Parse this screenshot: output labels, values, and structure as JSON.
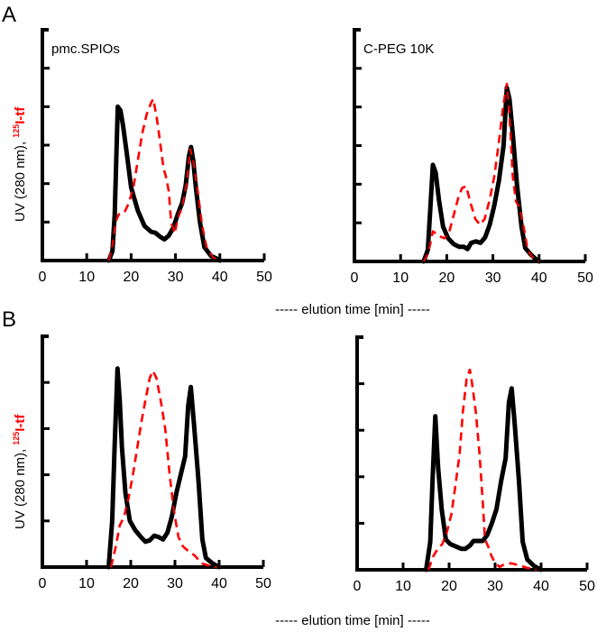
{
  "figure": {
    "panel_labels": [
      "A",
      "B"
    ],
    "xlabel": "----- elution time [min] -----",
    "ylabel_uv": "UV (280 nm),",
    "ylabel_tracer_superscript": "125",
    "ylabel_tracer": "I-tf",
    "colors": {
      "uv": "#000000",
      "tracer": "#ff0000"
    }
  },
  "chart_data": [
    {
      "type": "line",
      "panel": "A",
      "position": "left",
      "annotation": "pmc.SPIOs",
      "xlabel": "----- elution time [min] -----",
      "ylabel": "UV (280 nm), 125I-tf",
      "xlim": [
        0,
        50
      ],
      "xticks": [
        0,
        10,
        20,
        30,
        40,
        50
      ],
      "ylim": [
        0,
        6
      ],
      "yticks": [
        1,
        2,
        3,
        4,
        5,
        6
      ],
      "series": [
        {
          "name": "UV (280 nm)",
          "style": "solid-black",
          "x": [
            15,
            15.8,
            16.3,
            17,
            17.6,
            18.2,
            19,
            20,
            21.5,
            23,
            24.5,
            25.5,
            26.5,
            27.5,
            28.5,
            29.5,
            30.5,
            31.5,
            32.3,
            33,
            33.5,
            34,
            34.6,
            35.5,
            36.5,
            38,
            39.5,
            40
          ],
          "y": [
            0,
            0.25,
            1.2,
            4.0,
            3.9,
            3.5,
            2.8,
            1.9,
            1.3,
            0.9,
            0.75,
            0.72,
            0.62,
            0.55,
            0.65,
            0.85,
            1.2,
            1.5,
            1.95,
            2.7,
            2.95,
            2.6,
            1.9,
            1.0,
            0.35,
            0.12,
            0.04,
            0
          ]
        },
        {
          "name": "125I-tf",
          "style": "dashed-red",
          "x": [
            15,
            15.8,
            16.5,
            17.2,
            18.5,
            19.5,
            20.5,
            21.5,
            22.5,
            23.5,
            24.5,
            25,
            25.8,
            26.5,
            27.3,
            27.8,
            28.5,
            29,
            29.8,
            30.5,
            31.5,
            32.5,
            33.3,
            34,
            35,
            36,
            37,
            38.5,
            40
          ],
          "y": [
            0,
            0.4,
            1.0,
            1.2,
            1.25,
            1.5,
            1.9,
            2.6,
            3.3,
            3.8,
            4.1,
            4.2,
            3.7,
            3.1,
            2.4,
            2.2,
            1.8,
            1.0,
            0.7,
            1.1,
            1.4,
            2.0,
            2.9,
            2.6,
            1.8,
            0.9,
            0.35,
            0.08,
            0
          ]
        }
      ]
    },
    {
      "type": "line",
      "panel": "A",
      "position": "right",
      "annotation": "C-PEG  10K",
      "xlabel": "----- elution time [min] -----",
      "ylabel": "",
      "xlim": [
        0,
        50
      ],
      "xticks": [
        0,
        10,
        20,
        30,
        40,
        50
      ],
      "ylim": [
        0,
        6
      ],
      "yticks": [
        1,
        2,
        3,
        4,
        5,
        6
      ],
      "series": [
        {
          "name": "UV (280 nm)",
          "style": "solid-black",
          "x": [
            15,
            15.9,
            16.4,
            17,
            17.6,
            18.3,
            19.2,
            20.3,
            21.5,
            22.7,
            23.7,
            24.5,
            25.3,
            26.3,
            27.3,
            28.3,
            29.3,
            30.3,
            31.3,
            32.3,
            33,
            33.6,
            34.3,
            35.2,
            36.2,
            37,
            38.2,
            39.3,
            40
          ],
          "y": [
            0,
            0.3,
            1.3,
            2.5,
            2.3,
            1.6,
            0.9,
            0.6,
            0.45,
            0.38,
            0.38,
            0.32,
            0.48,
            0.52,
            0.48,
            0.62,
            0.95,
            1.45,
            2.1,
            3.0,
            4.5,
            4.2,
            3.3,
            2.0,
            0.9,
            0.35,
            0.18,
            0.06,
            0
          ]
        },
        {
          "name": "125I-tf",
          "style": "dashed-red",
          "x": [
            15,
            16,
            17,
            18.5,
            19.5,
            20.5,
            21.5,
            22.5,
            23.3,
            24.2,
            25.2,
            26.2,
            27.2,
            28.2,
            29.3,
            30.3,
            31.2,
            32.2,
            33,
            33.6,
            34.3,
            35,
            35.8,
            36.8,
            37.5,
            38.5,
            40
          ],
          "y": [
            0,
            0.22,
            0.78,
            0.65,
            0.6,
            0.75,
            1.2,
            1.65,
            1.9,
            1.95,
            1.5,
            1.1,
            0.95,
            1.1,
            1.6,
            2.2,
            3.0,
            4.0,
            4.6,
            3.8,
            2.2,
            1.55,
            1.4,
            0.8,
            0.3,
            0.12,
            0
          ]
        }
      ]
    },
    {
      "type": "line",
      "panel": "B",
      "position": "left",
      "annotation": "",
      "xlabel": "----- elution time [min] -----",
      "ylabel": "UV (280 nm), 125I-tf",
      "xlim": [
        0,
        50
      ],
      "xticks": [
        0,
        10,
        20,
        30,
        40,
        50
      ],
      "ylim": [
        0,
        5
      ],
      "yticks": [
        1,
        2,
        3,
        4,
        5
      ],
      "series": [
        {
          "name": "UV (280 nm)",
          "style": "solid-black",
          "x": [
            15,
            15.8,
            16.3,
            17,
            17.5,
            18,
            18.8,
            19.8,
            21,
            22.3,
            23.3,
            24.3,
            25.3,
            26.3,
            27.3,
            28.3,
            29.3,
            30.3,
            31.3,
            32.3,
            33,
            33.6,
            34.3,
            35.3,
            36.2,
            37,
            38.5,
            40
          ],
          "y": [
            0,
            1.0,
            2.5,
            4.3,
            3.6,
            2.6,
            1.6,
            1.0,
            0.8,
            0.65,
            0.55,
            0.58,
            0.68,
            0.65,
            0.6,
            0.75,
            1.1,
            1.6,
            2.0,
            2.4,
            3.5,
            3.9,
            3.1,
            1.9,
            0.6,
            0.2,
            0.08,
            0
          ]
        },
        {
          "name": "125I-tf",
          "style": "dashed-red",
          "x": [
            15.5,
            16.5,
            17.5,
            18.5,
            19.5,
            20.5,
            21.5,
            22.5,
            23.5,
            24.3,
            25,
            25.8,
            26.8,
            27.8,
            28.8,
            29.8,
            30.8,
            31.8,
            33,
            34.5,
            36,
            37.5,
            39.5
          ],
          "y": [
            0,
            0.4,
            0.9,
            1.1,
            1.5,
            2.0,
            2.6,
            3.2,
            3.7,
            4.1,
            4.25,
            4.1,
            3.6,
            3.0,
            2.0,
            1.2,
            0.65,
            0.45,
            0.35,
            0.25,
            0.08,
            0.04,
            0
          ]
        }
      ]
    },
    {
      "type": "line",
      "panel": "B",
      "position": "right",
      "annotation": "",
      "xlabel": "----- elution time [min] -----",
      "ylabel": "",
      "xlim": [
        0,
        50
      ],
      "xticks": [
        0,
        10,
        20,
        30,
        40,
        50
      ],
      "ylim": [
        0,
        5
      ],
      "yticks": [
        1,
        2,
        3,
        4,
        5
      ],
      "series": [
        {
          "name": "UV (280 nm)",
          "style": "solid-black",
          "x": [
            15,
            15.9,
            16.4,
            17,
            17.6,
            18.4,
            19.3,
            20.3,
            21.5,
            22.7,
            23.5,
            24.5,
            25.3,
            26.3,
            27.3,
            28.3,
            29.3,
            30.3,
            31.3,
            32.3,
            33,
            33.6,
            34.3,
            35.2,
            36,
            37,
            38.5,
            40
          ],
          "y": [
            0,
            0.6,
            1.9,
            3.3,
            2.2,
            1.3,
            0.65,
            0.55,
            0.5,
            0.45,
            0.45,
            0.52,
            0.62,
            0.62,
            0.62,
            0.75,
            1.0,
            1.3,
            1.9,
            2.4,
            3.6,
            3.9,
            3.1,
            1.9,
            0.6,
            0.22,
            0.08,
            0
          ]
        },
        {
          "name": "125I-tf",
          "style": "dashed-red",
          "x": [
            15.5,
            16.5,
            17.5,
            18.5,
            19.5,
            20.5,
            21.5,
            22.3,
            23,
            23.8,
            24.5,
            25,
            25.8,
            26.6,
            27.3,
            27.8,
            28.5,
            29.2,
            30,
            31,
            32,
            33.5,
            35,
            37,
            39
          ],
          "y": [
            0,
            0.28,
            0.45,
            0.55,
            0.8,
            1.2,
            1.9,
            2.5,
            3.4,
            4.1,
            4.3,
            4.0,
            3.4,
            2.5,
            1.5,
            0.65,
            0.5,
            0.3,
            0.15,
            0.06,
            0.12,
            0.14,
            0.1,
            0.04,
            0
          ]
        }
      ]
    }
  ]
}
